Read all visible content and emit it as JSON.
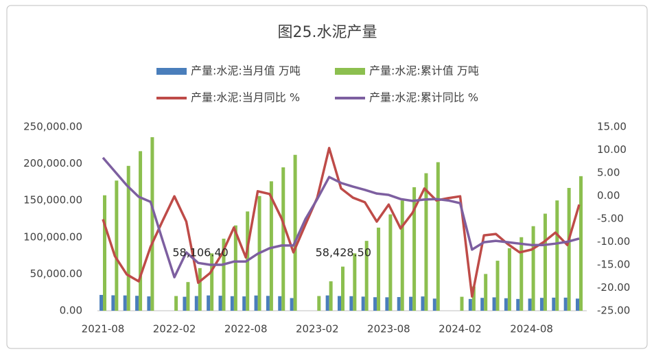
{
  "chart_data": {
    "type": "bar",
    "title": "图25.水泥产量",
    "categories": [
      "2021-08",
      null,
      null,
      null,
      null,
      null,
      "2022-02",
      null,
      null,
      null,
      null,
      null,
      "2022-08",
      null,
      null,
      null,
      null,
      null,
      "2023-02",
      null,
      null,
      null,
      null,
      null,
      "2023-08",
      null,
      null,
      null,
      null,
      null,
      "2024-02",
      null,
      null,
      null,
      null,
      null,
      "2024-08",
      null,
      null,
      null,
      null
    ],
    "series": [
      {
        "name": "产量:水泥:当月值 万吨",
        "type": "bar",
        "color": "#4a7ebb",
        "values": [
          21500,
          21000,
          20800,
          20300,
          19500,
          null,
          null,
          19000,
          20000,
          20800,
          20400,
          19800,
          19500,
          20700,
          20200,
          19800,
          17200,
          null,
          null,
          20800,
          20000,
          19800,
          19200,
          18400,
          18300,
          18600,
          19000,
          19400,
          16500,
          null,
          null,
          16000,
          17500,
          18200,
          17000,
          16000,
          16500,
          17500,
          17800,
          17800,
          16500
        ]
      },
      {
        "name": "产量:水泥:累计值 万吨",
        "type": "bar",
        "color": "#8cbf4f",
        "values": [
          157000,
          177000,
          197000,
          217000,
          236000,
          null,
          20000,
          39000,
          58000,
          78000,
          98000,
          116000,
          135000,
          156000,
          176000,
          195000,
          212000,
          null,
          20000,
          40000,
          60000,
          78000,
          95000,
          113000,
          131000,
          150000,
          168000,
          187000,
          202000,
          null,
          19000,
          33000,
          50000,
          68000,
          85000,
          100000,
          115000,
          132000,
          150000,
          167000,
          183000
        ]
      },
      {
        "name": "产量:水泥:当月同比 %",
        "type": "line",
        "axis": "y2",
        "color": "#be4b48",
        "values": [
          -5.1,
          -13.1,
          -17.1,
          -18.6,
          -11.1,
          -5.5,
          -0.1,
          -5.6,
          -18.9,
          -16.8,
          -12.6,
          -6.9,
          -13.4,
          1.0,
          0.4,
          -4.9,
          -12.3,
          -6.3,
          -0.4,
          10.4,
          1.6,
          -0.4,
          -1.4,
          -5.6,
          -1.9,
          -7.1,
          -3.7,
          1.6,
          -1.0,
          -0.5,
          -0.1,
          -21.9,
          -8.6,
          -8.3,
          -10.5,
          -12.3,
          -11.7,
          -10.1,
          -8.0,
          -10.7,
          -1.9
        ]
      },
      {
        "name": "产量:水泥:累计同比 %",
        "type": "line",
        "axis": "y2",
        "color": "#7d5fa0",
        "values": [
          8.3,
          5.3,
          2.3,
          -0.2,
          -1.3,
          -9.6,
          -17.7,
          -12.3,
          -14.6,
          -15.0,
          -15.0,
          -14.3,
          -14.3,
          -12.6,
          -11.4,
          -10.8,
          -10.8,
          -5.1,
          -0.7,
          4.1,
          2.8,
          2.0,
          1.3,
          0.5,
          0.2,
          -0.7,
          -1.1,
          -0.8,
          -0.7,
          -1.0,
          -1.6,
          -11.7,
          -10.1,
          -9.8,
          -10.1,
          -10.4,
          -10.7,
          -10.7,
          -10.4,
          -10.0,
          -9.3
        ]
      }
    ],
    "annotations": [
      {
        "text": "58,106.40",
        "index": 6,
        "value": 58106.4
      },
      {
        "text": "58,428.50",
        "index": 18,
        "value": 58428.5
      }
    ],
    "ylim": [
      0,
      250000
    ],
    "yticks": [
      {
        "value": 0,
        "label": "0.00"
      },
      {
        "value": 50000,
        "label": "50,000.00"
      },
      {
        "value": 100000,
        "label": "100,000.00"
      },
      {
        "value": 150000,
        "label": "150,000.00"
      },
      {
        "value": 200000,
        "label": "200,000.00"
      },
      {
        "value": 250000,
        "label": "250,000.00"
      }
    ],
    "y2lim": [
      -25,
      15
    ],
    "y2ticks": [
      {
        "value": -25,
        "label": "-25.00"
      },
      {
        "value": -20,
        "label": "-20.00"
      },
      {
        "value": -15,
        "label": "-15.00"
      },
      {
        "value": -10,
        "label": "-10.00"
      },
      {
        "value": -5,
        "label": "-5.00"
      },
      {
        "value": 0,
        "label": "0.00"
      },
      {
        "value": 5,
        "label": "5.00"
      },
      {
        "value": 10,
        "label": "10.00"
      },
      {
        "value": 15,
        "label": "15.00"
      }
    ],
    "grid": false,
    "legend": "top"
  }
}
